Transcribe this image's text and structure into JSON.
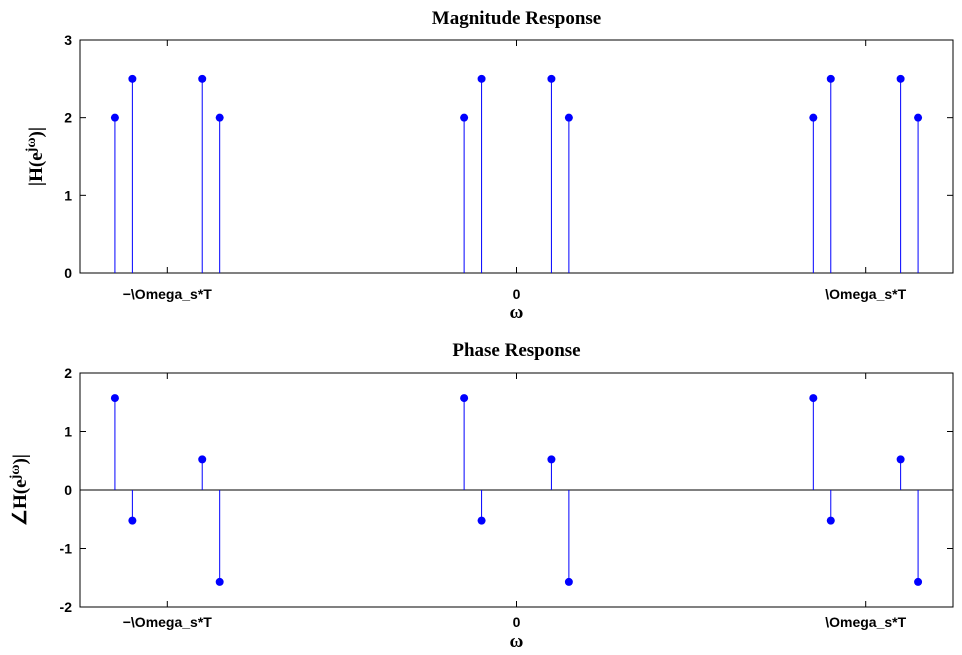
{
  "figure": {
    "background": "#ffffff",
    "stem_color": "#0000ff",
    "axis_color": "#000000"
  },
  "chart_data": [
    {
      "type": "stem",
      "title": "Magnitude Response",
      "xlabel": "ω",
      "ylabel_base": "|H(e",
      "ylabel_sup": "jω",
      "ylabel_tail": ")|",
      "xlim": [
        -10.0,
        10.0
      ],
      "ylim": [
        0,
        3
      ],
      "yticks": [
        0,
        1,
        2,
        3
      ],
      "xtick_values": [
        -8.0,
        0,
        8.0
      ],
      "xtick_labels": [
        "−\\Omega_s*T",
        "0",
        "\\Omega_s*T"
      ],
      "zero_line": false,
      "x": [
        -9.2,
        -8.8,
        -7.2,
        -6.8,
        -1.2,
        -0.8,
        0.8,
        1.2,
        6.8,
        7.2,
        8.8,
        9.2
      ],
      "y": [
        2,
        2.5,
        2.5,
        2,
        2,
        2.5,
        2.5,
        2,
        2,
        2.5,
        2.5,
        2
      ]
    },
    {
      "type": "stem",
      "title": "Phase Response",
      "xlabel": "ω",
      "ylabel_base": "∠H(e",
      "ylabel_sup": "jω",
      "ylabel_tail": ")|",
      "xlim": [
        -10.0,
        10.0
      ],
      "ylim": [
        -2,
        2
      ],
      "yticks": [
        -2,
        -1,
        0,
        1,
        2
      ],
      "xtick_values": [
        -8.0,
        0,
        8.0
      ],
      "xtick_labels": [
        "−\\Omega_s*T",
        "0",
        "\\Omega_s*T"
      ],
      "zero_line": true,
      "x": [
        -9.2,
        -8.8,
        -7.2,
        -6.8,
        -1.2,
        -0.8,
        0.8,
        1.2,
        6.8,
        7.2,
        8.8,
        9.2
      ],
      "y": [
        1.5708,
        -0.5236,
        0.5236,
        -1.5708,
        1.5708,
        -0.5236,
        0.5236,
        -1.5708,
        1.5708,
        -0.5236,
        0.5236,
        -1.5708
      ]
    }
  ]
}
